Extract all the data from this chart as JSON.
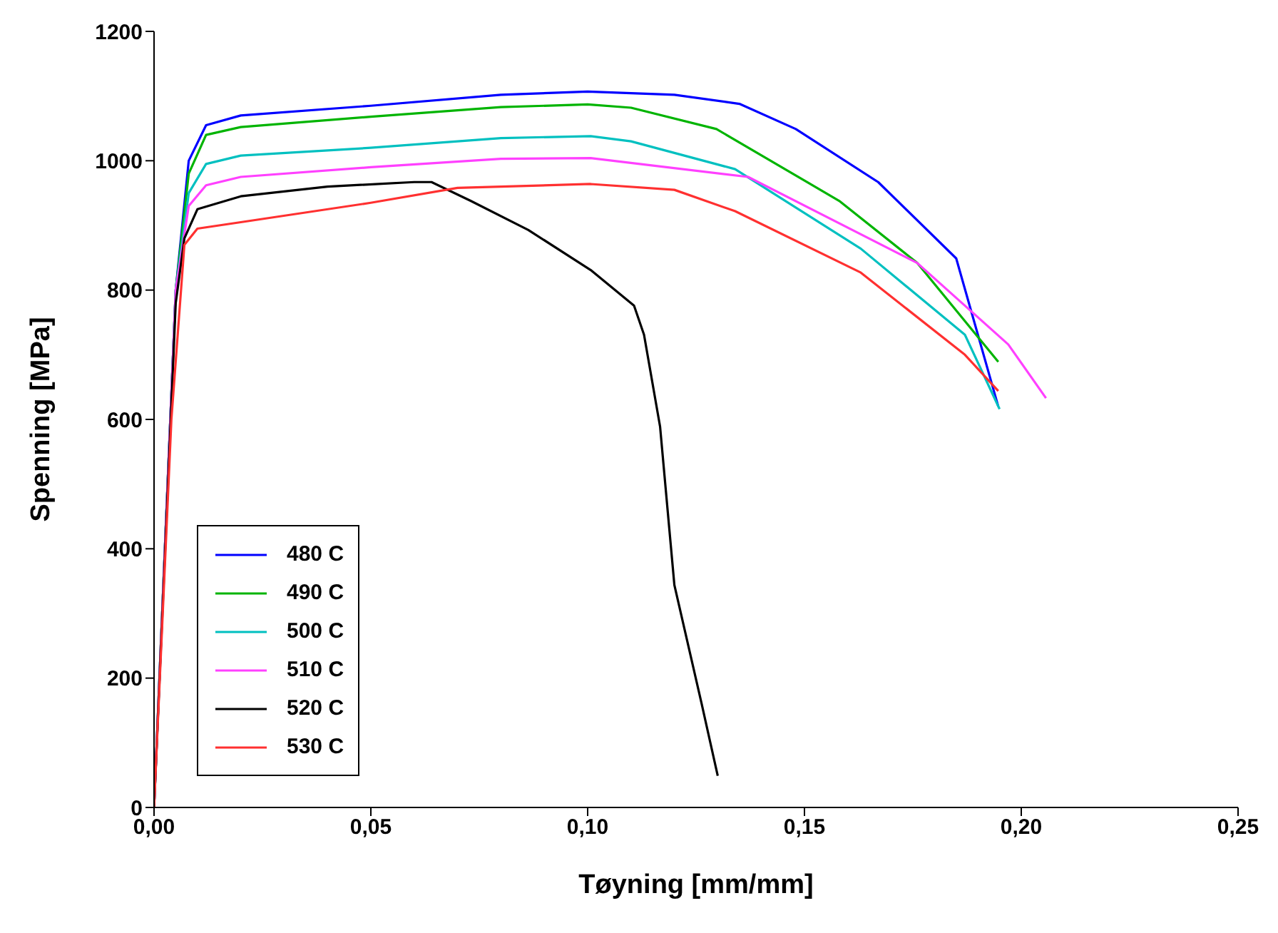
{
  "chart_data": {
    "type": "line",
    "xlabel": "Tøyning [mm/mm]",
    "ylabel": "Spenning [MPa]",
    "xlim": [
      0,
      0.25
    ],
    "ylim": [
      0,
      1200
    ],
    "xticks": [
      {
        "value": 0,
        "label": "0,00"
      },
      {
        "value": 0.05,
        "label": "0,05"
      },
      {
        "value": 0.1,
        "label": "0,10"
      },
      {
        "value": 0.15,
        "label": "0,15"
      },
      {
        "value": 0.2,
        "label": "0,20"
      },
      {
        "value": 0.25,
        "label": "0,25"
      }
    ],
    "yticks": [
      0,
      200,
      400,
      600,
      800,
      1000,
      1200
    ],
    "grid": false,
    "legend": "bottom left",
    "marker": "none",
    "line_style": "solid",
    "series": [
      {
        "name": "480 C",
        "color": "#0000ff",
        "x": [
          0,
          0.005,
          0.008,
          0.012,
          0.02,
          0.05,
          0.08,
          0.1,
          0.12,
          0.135,
          0.148,
          0.167,
          0.185,
          0.1947
        ],
        "values": [
          0,
          800,
          1000,
          1055,
          1070,
          1085,
          1102,
          1107,
          1102,
          1088,
          1049,
          967,
          849,
          620
        ]
      },
      {
        "name": "490 C",
        "color": "#00b400",
        "x": [
          0,
          0.005,
          0.008,
          0.012,
          0.02,
          0.05,
          0.08,
          0.1,
          0.11,
          0.1297,
          0.158,
          0.176,
          0.1947
        ],
        "values": [
          0,
          800,
          980,
          1040,
          1052,
          1068,
          1083,
          1087,
          1082,
          1049,
          938,
          842,
          689
        ]
      },
      {
        "name": "500 C",
        "color": "#00c0c0",
        "x": [
          0,
          0.005,
          0.008,
          0.012,
          0.02,
          0.05,
          0.08,
          0.1007,
          0.11,
          0.134,
          0.163,
          0.187,
          0.195
        ],
        "values": [
          0,
          800,
          950,
          995,
          1008,
          1020,
          1035,
          1038,
          1030,
          987,
          864,
          731,
          616
        ]
      },
      {
        "name": "510 C",
        "color": "#ff40ff",
        "x": [
          0,
          0.005,
          0.008,
          0.012,
          0.02,
          0.05,
          0.08,
          0.1007,
          0.137,
          0.176,
          0.197,
          0.2057
        ],
        "values": [
          0,
          800,
          930,
          962,
          975,
          990,
          1003,
          1004,
          975,
          842,
          716,
          633
        ]
      },
      {
        "name": "520 C",
        "color": "#000000",
        "x": [
          0,
          0.005,
          0.007,
          0.01,
          0.02,
          0.04,
          0.06,
          0.064,
          0.073,
          0.0863,
          0.1007,
          0.1107,
          0.113,
          0.1167,
          0.12,
          0.1263,
          0.13
        ],
        "values": [
          0,
          780,
          880,
          925,
          945,
          960,
          967,
          967,
          938,
          893,
          831,
          776,
          731,
          589,
          344,
          160,
          49
        ]
      },
      {
        "name": "530 C",
        "color": "#ff3030",
        "x": [
          0,
          0.004,
          0.007,
          0.01,
          0.02,
          0.05,
          0.07,
          0.1007,
          0.12,
          0.134,
          0.163,
          0.187,
          0.1947
        ],
        "values": [
          0,
          600,
          870,
          895,
          905,
          935,
          958,
          964,
          955,
          922,
          827,
          700,
          644
        ]
      }
    ]
  }
}
